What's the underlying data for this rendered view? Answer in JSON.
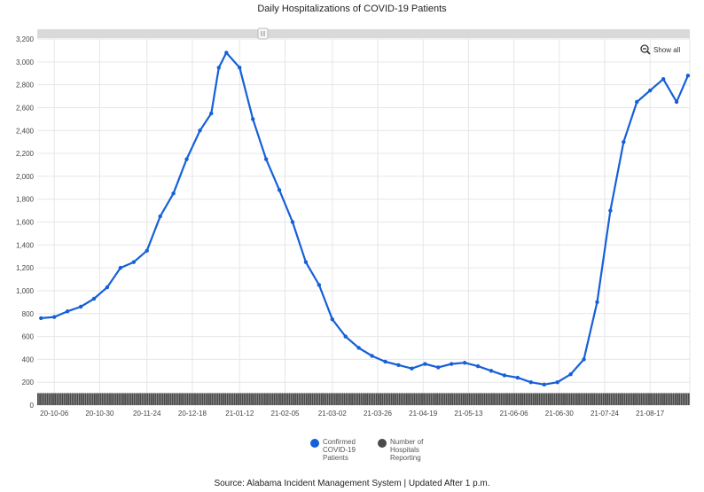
{
  "title": "Daily Hospitalizations of COVID-19 Patients",
  "source": "Source: Alabama Incident Management System | Updated After 1 p.m.",
  "show_all_label": "Show all",
  "icons": {
    "zoom": "zoom-out-icon",
    "scroll_handle": "scroll-handle-grip-icon"
  },
  "colors": {
    "confirmed": "#1560d8",
    "hospitals": "#4a4a4a",
    "grid": "#e6e6e6",
    "scrollbar": "#d9d9d9"
  },
  "chart_data": {
    "type": "line",
    "title": "Daily Hospitalizations of COVID-19 Patients",
    "ylim": [
      0,
      3200
    ],
    "yticks": [
      0,
      200,
      400,
      600,
      800,
      1000,
      1200,
      1400,
      1600,
      1800,
      2000,
      2200,
      2400,
      2600,
      2800,
      3000,
      3200
    ],
    "ytick_labels": [
      "0",
      "200",
      "400",
      "600",
      "800",
      "1,000",
      "1,200",
      "1,400",
      "1,600",
      "1,800",
      "2,000",
      "2,200",
      "2,400",
      "2,600",
      "2,800",
      "3,000",
      "3,200"
    ],
    "x_start": "20-09-27",
    "x_end": "21-09-07",
    "xtick_labels": [
      "20-10-06",
      "20-10-30",
      "20-11-24",
      "20-12-18",
      "21-01-12",
      "21-02-05",
      "21-03-02",
      "21-03-26",
      "21-04-19",
      "21-05-13",
      "21-06-06",
      "21-06-30",
      "21-07-24",
      "21-08-17"
    ],
    "grid": true,
    "legend": "bottom",
    "series": [
      {
        "name": "Confirmed COVID-19 Patients",
        "kind": "line",
        "x": [
          "20-09-29",
          "20-10-06",
          "20-10-13",
          "20-10-20",
          "20-10-27",
          "20-11-03",
          "20-11-10",
          "20-11-17",
          "20-11-24",
          "20-12-01",
          "20-12-08",
          "20-12-15",
          "20-12-22",
          "20-12-28",
          "21-01-01",
          "21-01-05",
          "21-01-12",
          "21-01-19",
          "21-01-26",
          "21-02-02",
          "21-02-09",
          "21-02-16",
          "21-02-23",
          "21-03-02",
          "21-03-09",
          "21-03-16",
          "21-03-23",
          "21-03-30",
          "21-04-06",
          "21-04-13",
          "21-04-20",
          "21-04-27",
          "21-05-04",
          "21-05-11",
          "21-05-18",
          "21-05-25",
          "21-06-01",
          "21-06-08",
          "21-06-15",
          "21-06-22",
          "21-06-29",
          "21-07-06",
          "21-07-13",
          "21-07-20",
          "21-07-27",
          "21-08-03",
          "21-08-10",
          "21-08-17",
          "21-08-24",
          "21-08-31",
          "21-09-06"
        ],
        "values": [
          760,
          770,
          820,
          860,
          930,
          1030,
          1200,
          1250,
          1350,
          1650,
          1850,
          2150,
          2400,
          2550,
          2950,
          3080,
          2950,
          2500,
          2150,
          1880,
          1600,
          1250,
          1050,
          750,
          600,
          500,
          430,
          380,
          350,
          320,
          360,
          330,
          360,
          370,
          340,
          300,
          260,
          240,
          200,
          180,
          200,
          270,
          400,
          900,
          1700,
          2300,
          2650,
          2750,
          2850,
          2650,
          2880
        ]
      },
      {
        "name": "Number of Hospitals Reporting",
        "kind": "column",
        "value": 105
      }
    ]
  }
}
